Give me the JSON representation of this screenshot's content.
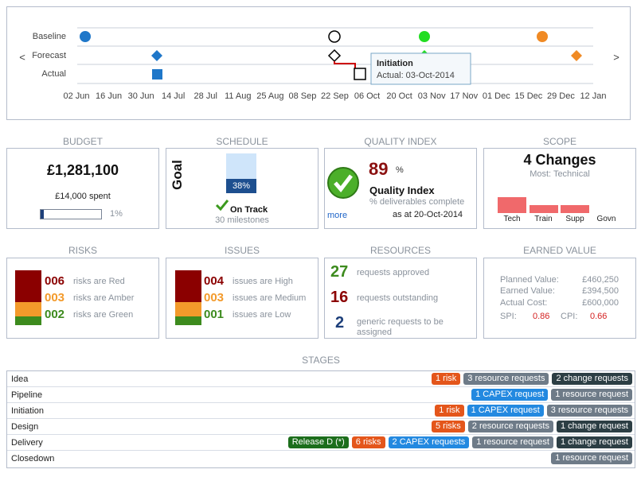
{
  "timeline": {
    "rows": [
      "Baseline",
      "Forecast",
      "Actual"
    ],
    "dates": [
      "02 Jun",
      "16 Jun",
      "30 Jun",
      "14 Jul",
      "28 Jul",
      "11 Aug",
      "25 Aug",
      "08 Sep",
      "22 Sep",
      "06 Oct",
      "20 Oct",
      "03 Nov",
      "17 Nov",
      "01 Dec",
      "15 Dec",
      "29 Dec",
      "12 Jan"
    ],
    "prev": "<",
    "next": ">",
    "tooltip": {
      "title": "Initiation",
      "text": "Actual: 03-Oct-2014"
    }
  },
  "budget": {
    "title": "BUDGET",
    "total": "£1,281,100",
    "spent": "£14,000 spent",
    "percent": "1%"
  },
  "schedule": {
    "title": "SCHEDULE",
    "goal": "Goal",
    "percent": "38%",
    "status": "On Track",
    "milestones": "30 milestones"
  },
  "quality": {
    "title": "QUALITY INDEX",
    "value": "89",
    "unit": "%",
    "label": "Quality Index",
    "caption": "% deliverables complete",
    "date": "as at 20-Oct-2014",
    "more": "more"
  },
  "scope": {
    "title": "SCOPE",
    "headline": "4 Changes",
    "most": "Most: Technical",
    "bars": {
      "categories": [
        "Tech",
        "Train",
        "Supp",
        "Govn"
      ],
      "values": [
        2,
        1,
        1,
        0
      ],
      "color": "#f0696b"
    }
  },
  "risks": {
    "title": "RISKS",
    "items": [
      {
        "count": "006",
        "text": "risks are Red",
        "color": "#8b0000"
      },
      {
        "count": "003",
        "text": "risks are Amber",
        "color": "#f39a2b"
      },
      {
        "count": "002",
        "text": "risks are Green",
        "color": "#3d8b1e"
      }
    ]
  },
  "issues": {
    "title": "ISSUES",
    "items": [
      {
        "count": "004",
        "text": "issues are High",
        "color": "#8b0000"
      },
      {
        "count": "003",
        "text": "issues are Medium",
        "color": "#f39a2b"
      },
      {
        "count": "001",
        "text": "issues are Low",
        "color": "#3d8b1e"
      }
    ]
  },
  "resources": {
    "title": "RESOURCES",
    "items": [
      {
        "count": "27",
        "text": "requests approved",
        "color": "#3d8b1e"
      },
      {
        "count": "16",
        "text": "requests outstanding",
        "color": "#8b0000"
      },
      {
        "count": "2",
        "text": "generic requests to be assigned",
        "color": "#1d3f7a"
      }
    ]
  },
  "earned": {
    "title": "EARNED VALUE",
    "rows": [
      [
        "Planned Value:",
        "£460,250"
      ],
      [
        "Earned Value:",
        "£394,500"
      ],
      [
        "Actual Cost:",
        "£600,000"
      ]
    ],
    "spi_label": "SPI:",
    "spi": "0.86",
    "cpi_label": "CPI:",
    "cpi": "0.66"
  },
  "stages": {
    "title": "STAGES",
    "rows": [
      {
        "name": "Idea",
        "badges": [
          {
            "label": "1 risk",
            "color": "#e4561b"
          },
          {
            "label": "3 resource requests",
            "color": "#6e7b88"
          },
          {
            "label": "2 change requests",
            "color": "#2c3e44"
          }
        ]
      },
      {
        "name": "Pipeline",
        "badges": [
          {
            "label": "1 CAPEX request",
            "color": "#2389e0"
          },
          {
            "label": "1 resource request",
            "color": "#6e7b88"
          }
        ]
      },
      {
        "name": "Initiation",
        "badges": [
          {
            "label": "1 risk",
            "color": "#e4561b"
          },
          {
            "label": "1 CAPEX request",
            "color": "#2389e0"
          },
          {
            "label": "3 resource requests",
            "color": "#6e7b88"
          }
        ]
      },
      {
        "name": "Design",
        "badges": [
          {
            "label": "5 risks",
            "color": "#e4561b"
          },
          {
            "label": "2 resource requests",
            "color": "#6e7b88"
          },
          {
            "label": "1 change request",
            "color": "#2c3e44"
          }
        ]
      },
      {
        "name": "Delivery",
        "badges": [
          {
            "label": "Release D (*)",
            "color": "#1c6e1c"
          },
          {
            "label": "6 risks",
            "color": "#e4561b"
          },
          {
            "label": "2 CAPEX requests",
            "color": "#2389e0"
          },
          {
            "label": "1 resource request",
            "color": "#6e7b88"
          },
          {
            "label": "1 change request",
            "color": "#2c3e44"
          }
        ]
      },
      {
        "name": "Closedown",
        "badges": [
          {
            "label": "1 resource request",
            "color": "#6e7b88"
          }
        ]
      }
    ]
  }
}
